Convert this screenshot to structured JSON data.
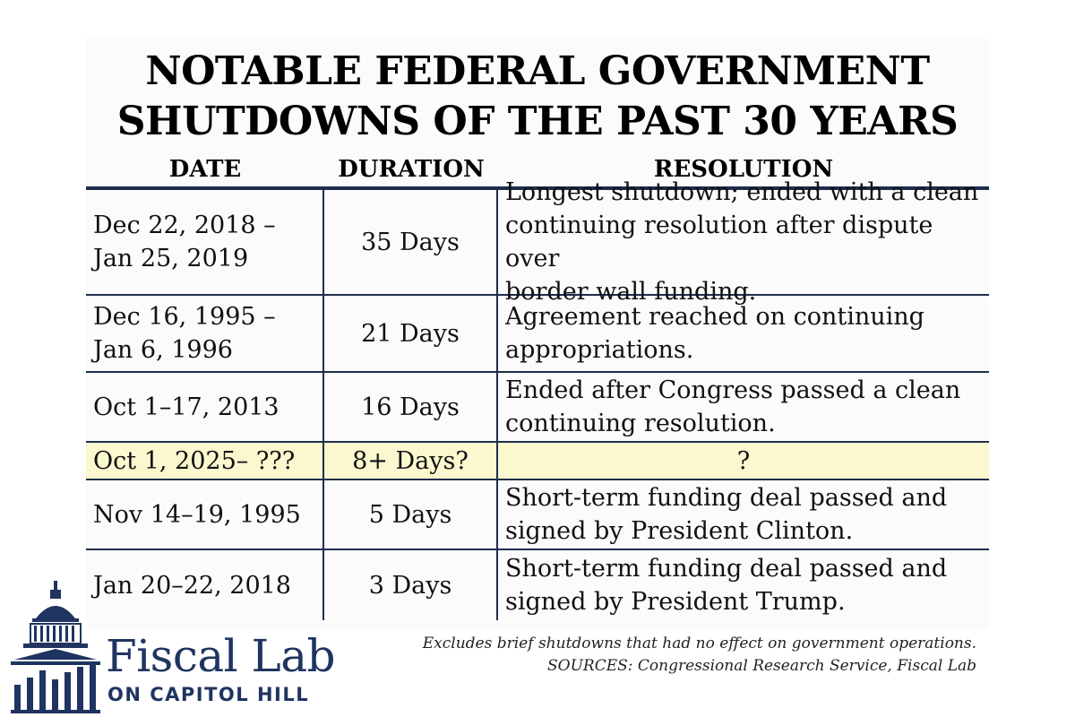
{
  "title": {
    "line1": "NOTABLE FEDERAL GOVERNMENT",
    "line2": "SHUTDOWNS OF THE PAST 30 YEARS"
  },
  "headers": {
    "date": "DATE",
    "duration": "DURATION",
    "resolution": "RESOLUTION"
  },
  "rows": [
    {
      "date_lines": [
        "Dec 22, 2018 –",
        "Jan 25, 2019"
      ],
      "duration": "35 Days",
      "resolution_lines": [
        "Longest shutdown; ended with a clean",
        "continuing resolution after dispute over",
        "border wall funding."
      ],
      "highlighted": false
    },
    {
      "date_lines": [
        "Dec 16, 1995 –",
        "Jan 6, 1996"
      ],
      "duration": "21 Days",
      "resolution_lines": [
        "Agreement reached on continuing",
        "appropriations."
      ],
      "highlighted": false
    },
    {
      "date_lines": [
        "Oct 1–17, 2013"
      ],
      "duration": "16 Days",
      "resolution_lines": [
        "Ended after Congress passed a clean",
        "continuing resolution."
      ],
      "highlighted": false
    },
    {
      "date_lines": [
        "Oct 1, 2025– ???"
      ],
      "duration": "8+ Days?",
      "resolution_lines": [
        "?"
      ],
      "highlighted": true,
      "highlight_color": "#fbf8cf"
    },
    {
      "date_lines": [
        "Nov 14–19, 1995"
      ],
      "duration": "5 Days",
      "resolution_lines": [
        "Short-term funding deal passed and",
        "signed by President Clinton."
      ],
      "highlighted": false
    },
    {
      "date_lines": [
        "Jan 20–22, 2018"
      ],
      "duration": "3 Days",
      "resolution_lines": [
        "Short-term funding deal passed and",
        "signed by President Trump."
      ],
      "highlighted": false
    }
  ],
  "logo": {
    "name_line1": "Fiscal Lab",
    "name_line2": "ON CAPITOL HILL",
    "icon": "capitol-dome-icon",
    "color": "#1f3460"
  },
  "footnote": {
    "line1": "Excludes brief shutdowns that had no effect on government operations.",
    "line2": "SOURCES: Congressional Research Service, Fiscal Lab"
  },
  "colors": {
    "rule": "#1f2d4d",
    "highlight": "#fbf8cf",
    "brand": "#1f3460"
  }
}
